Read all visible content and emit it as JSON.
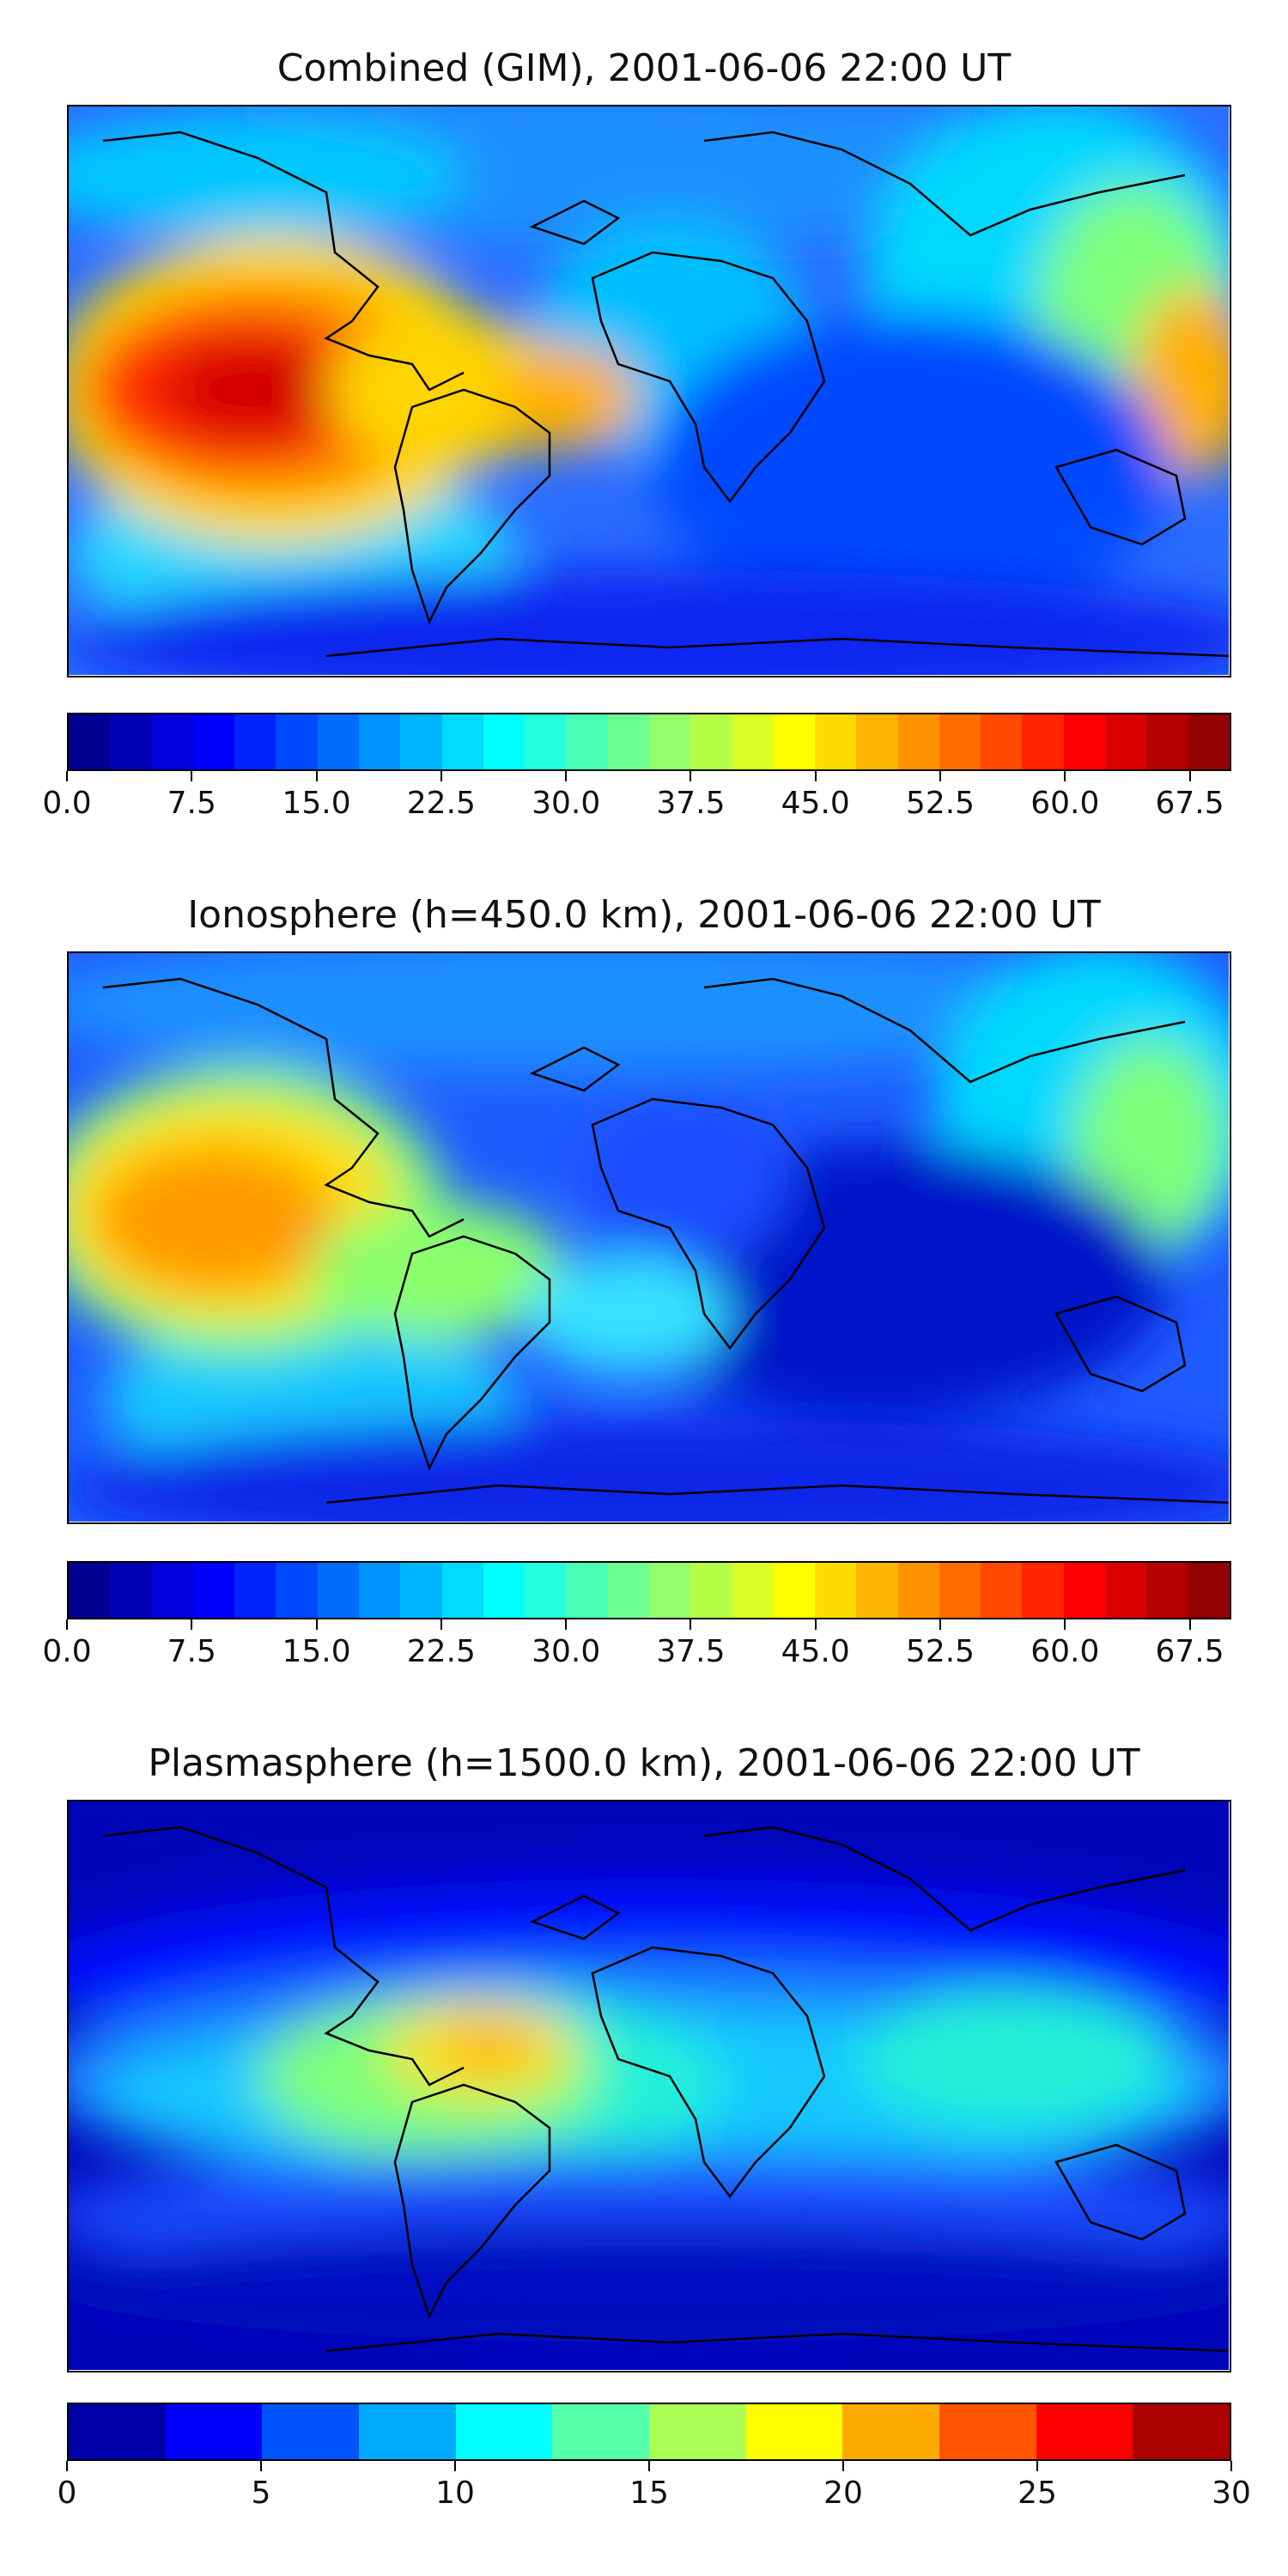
{
  "panels": [
    {
      "title": "Combined (GIM), 2001-06-06 22:00 UT",
      "colorbar": {
        "min": 0,
        "max": 70,
        "levels": 28,
        "tick_values": [
          0,
          7.5,
          15,
          22.5,
          30,
          37.5,
          45,
          52.5,
          60,
          67.5
        ],
        "tick_labels": [
          "0.0",
          "7.5",
          "15.0",
          "22.5",
          "30.0",
          "37.5",
          "45.0",
          "52.5",
          "60.0",
          "67.5"
        ]
      }
    },
    {
      "title": "Ionosphere  (h=450.0 km), 2001-06-06 22:00 UT",
      "colorbar": {
        "min": 0,
        "max": 70,
        "levels": 28,
        "tick_values": [
          0,
          7.5,
          15,
          22.5,
          30,
          37.5,
          45,
          52.5,
          60,
          67.5
        ],
        "tick_labels": [
          "0.0",
          "7.5",
          "15.0",
          "22.5",
          "30.0",
          "37.5",
          "45.0",
          "52.5",
          "60.0",
          "67.5"
        ]
      }
    },
    {
      "title": "Plasmasphere (h=1500.0 km), 2001-06-06 22:00 UT",
      "colorbar": {
        "min": 0,
        "max": 30,
        "levels": 12,
        "tick_values": [
          0,
          5,
          10,
          15,
          20,
          25,
          30
        ],
        "tick_labels": [
          "0",
          "5",
          "10",
          "15",
          "20",
          "25",
          "30"
        ]
      }
    }
  ],
  "colormap": "jet"
}
